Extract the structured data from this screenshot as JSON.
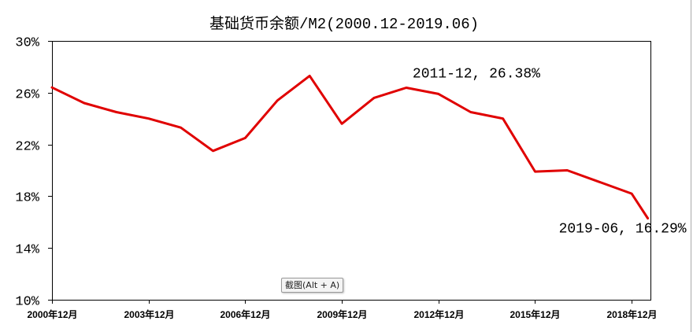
{
  "chart_data": {
    "type": "line",
    "title": "基础货币余额/M2(2000.12-2019.06)",
    "xlabel": "",
    "ylabel": "",
    "x_tick_labels": [
      "2000年12月",
      "2003年12月",
      "2006年12月",
      "2009年12月",
      "2012年12月",
      "2015年12月",
      "2018年12月"
    ],
    "y_tick_labels": [
      "30%",
      "26%",
      "22%",
      "18%",
      "14%",
      "10%"
    ],
    "xlim": [
      "2000-12",
      "2019-07"
    ],
    "ylim": [
      10,
      30
    ],
    "grid": false,
    "legend": "none",
    "series": [
      {
        "color": "#e00000",
        "x": [
          "2000-12",
          "2001-12",
          "2002-12",
          "2003-12",
          "2004-12",
          "2005-12",
          "2006-12",
          "2007-12",
          "2008-12",
          "2009-12",
          "2010-12",
          "2011-12",
          "2012-12",
          "2013-12",
          "2014-12",
          "2015-12",
          "2016-12",
          "2017-12",
          "2018-12",
          "2019-06"
        ],
        "y": [
          26.4,
          25.2,
          24.5,
          24.0,
          23.3,
          21.5,
          22.5,
          25.4,
          27.3,
          23.6,
          25.6,
          26.38,
          25.9,
          24.5,
          24.0,
          19.9,
          20.0,
          19.1,
          18.2,
          16.29
        ]
      }
    ],
    "annotations": [
      {
        "x": "2011-12",
        "y": 26.38,
        "text": "2011-12, 26.38%"
      },
      {
        "x": "2019-06",
        "y": 16.29,
        "text": "2019-06, 16.29%"
      }
    ]
  },
  "overlay": {
    "tooltip": "截图(Alt + A)"
  }
}
